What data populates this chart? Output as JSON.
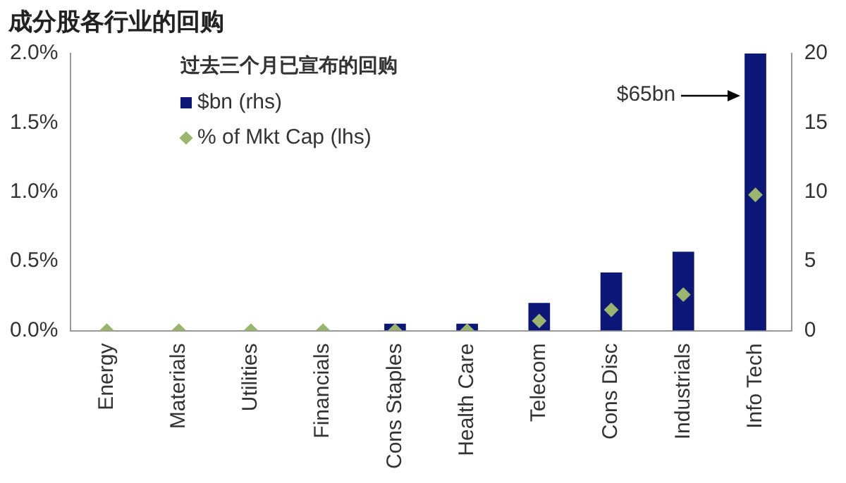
{
  "chart_data": {
    "type": "bar",
    "title": "成分股各行业的回购",
    "legend_title": "过去三个月已宣布的回购",
    "categories": [
      "Energy",
      "Materials",
      "Utilities",
      "Financials",
      "Cons Staples",
      "Health Care",
      "Telecom",
      "Cons Disc",
      "Industrials",
      "Info Tech"
    ],
    "series": [
      {
        "name": "$bn (rhs)",
        "axis": "y2",
        "color": "#0d1778",
        "values": [
          0,
          0,
          0,
          0,
          0.5,
          0.5,
          2.0,
          4.2,
          5.7,
          20
        ]
      },
      {
        "name": "% of Mkt Cap (lhs)",
        "type": "scatter",
        "axis": "y",
        "marker": "diamond",
        "color": "#9bb46e",
        "x": [
          "Energy",
          "Materials",
          "Utilities",
          "Financials",
          "Cons Staples",
          "Health Care",
          "Telecom",
          "Cons Disc",
          "Industrials",
          "Info Tech"
        ],
        "values": [
          0,
          0,
          0,
          0,
          0,
          0,
          0.07,
          0.15,
          0.26,
          0.98
        ]
      }
    ],
    "ylim": [
      0,
      2.0
    ],
    "yticks": [
      {
        "value": 0,
        "label": "0.0%"
      },
      {
        "value": 0.5,
        "label": "0.5%"
      },
      {
        "value": 1.0,
        "label": "1.0%"
      },
      {
        "value": 1.5,
        "label": "1.5%"
      },
      {
        "value": 2.0,
        "label": "2.0%"
      }
    ],
    "y2lim": [
      0,
      20
    ],
    "y2ticks": [
      0,
      5,
      10,
      15,
      20
    ],
    "annotations": [
      "$65bn"
    ],
    "grid": false,
    "legend": "top left"
  }
}
